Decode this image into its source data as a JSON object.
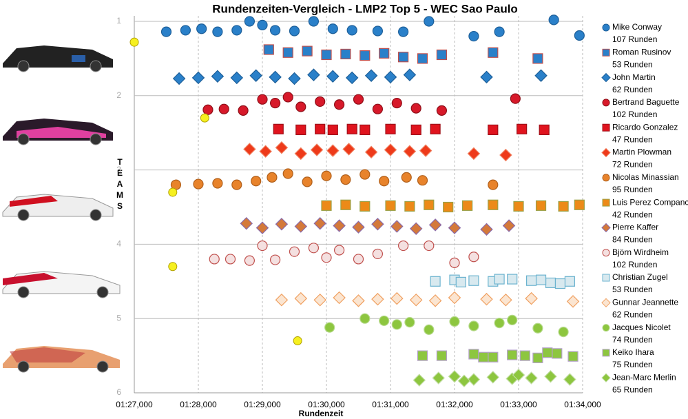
{
  "chart_data": {
    "type": "scatter",
    "title": "Rundenzeiten-Vergleich - LMP2 Top 5 - WEC Sao Paulo",
    "xlabel": "Rundenzeit",
    "ylabel": "TEAMS",
    "xlim": [
      87,
      94
    ],
    "xticks": [
      {
        "value": 87,
        "label": "01:27,000"
      },
      {
        "value": 88,
        "label": "01:28,000"
      },
      {
        "value": 89,
        "label": "01:29,000"
      },
      {
        "value": 90,
        "label": "01:30,000"
      },
      {
        "value": 91,
        "label": "01:31,000"
      },
      {
        "value": 92,
        "label": "01:32,000"
      },
      {
        "value": 93,
        "label": "01:33,000"
      },
      {
        "value": 94,
        "label": "01:34,000"
      }
    ],
    "ylim": [
      1,
      6
    ],
    "yticks": [
      1,
      2,
      3,
      4,
      5,
      6
    ],
    "y_inverted": true,
    "grid": true,
    "series": [
      {
        "name": "Mike Conway",
        "laps": "107 Runden",
        "marker": "circle",
        "color": "#2a80c9",
        "edge": "#1d5f99",
        "x": [
          87.5,
          87.8,
          88.05,
          88.3,
          88.6,
          88.8,
          89.0,
          89.2,
          89.5,
          89.8,
          90.1,
          90.4,
          90.8,
          91.2,
          91.6,
          92.3,
          92.7,
          93.55,
          93.95
        ],
        "y": [
          1.14,
          1.12,
          1.1,
          1.14,
          1.12,
          1.0,
          1.05,
          1.12,
          1.13,
          1.0,
          1.1,
          1.12,
          1.13,
          1.14,
          1.0,
          1.2,
          1.14,
          0.98,
          1.19
        ]
      },
      {
        "name": "Roman Rusinov",
        "laps": "53 Runden",
        "marker": "square",
        "color": "#2a80c9",
        "edge": "#c0504d",
        "x": [
          89.1,
          89.4,
          89.7,
          90.0,
          90.3,
          90.6,
          90.9,
          91.2,
          91.5,
          91.8,
          92.6,
          93.3
        ],
        "y": [
          1.38,
          1.42,
          1.4,
          1.45,
          1.44,
          1.46,
          1.43,
          1.48,
          1.5,
          1.45,
          1.42,
          1.5
        ]
      },
      {
        "name": "John Martin",
        "laps": "62 Runden",
        "marker": "diamond",
        "color": "#2a80c9",
        "edge": "#1d5f99",
        "x": [
          87.7,
          88.0,
          88.3,
          88.6,
          88.9,
          89.2,
          89.5,
          89.8,
          90.1,
          90.4,
          90.7,
          91.0,
          91.3,
          92.5,
          93.35
        ],
        "y": [
          1.77,
          1.76,
          1.74,
          1.76,
          1.73,
          1.75,
          1.77,
          1.72,
          1.74,
          1.76,
          1.73,
          1.75,
          1.72,
          1.75,
          1.73
        ]
      },
      {
        "name": "Bertrand Baguette",
        "laps": "102 Runden",
        "marker": "circle",
        "color": "#d7192a",
        "edge": "#8e1019",
        "x": [
          88.15,
          88.4,
          88.7,
          89.0,
          89.2,
          89.4,
          89.6,
          89.9,
          90.2,
          90.5,
          90.8,
          91.1,
          91.4,
          91.8,
          92.95
        ],
        "y": [
          2.19,
          2.18,
          2.2,
          2.05,
          2.1,
          2.02,
          2.15,
          2.08,
          2.12,
          2.05,
          2.18,
          2.1,
          2.17,
          2.2,
          2.04
        ]
      },
      {
        "name": "Ricardo Gonzalez",
        "laps": "47 Runden",
        "marker": "square",
        "color": "#e0141e",
        "edge": "#a01018",
        "x": [
          89.25,
          89.6,
          89.9,
          90.1,
          90.4,
          90.6,
          91.0,
          91.4,
          91.7,
          92.6,
          93.05,
          93.4
        ],
        "y": [
          2.45,
          2.46,
          2.45,
          2.46,
          2.45,
          2.46,
          2.45,
          2.46,
          2.45,
          2.46,
          2.45,
          2.46
        ]
      },
      {
        "name": "Martin Plowman",
        "laps": "72 Runden",
        "marker": "diamond",
        "color": "#ee3a1a",
        "edge": "#f08060",
        "x": [
          88.8,
          89.05,
          89.3,
          89.6,
          89.85,
          90.1,
          90.35,
          90.7,
          91.0,
          91.3,
          91.55,
          92.3,
          92.8
        ],
        "y": [
          2.72,
          2.75,
          2.7,
          2.78,
          2.73,
          2.74,
          2.72,
          2.76,
          2.73,
          2.75,
          2.74,
          2.78,
          2.8
        ]
      },
      {
        "name": "Nicolas Minassian",
        "laps": "95 Runden",
        "marker": "circle",
        "color": "#e8832b",
        "edge": "#b0601c",
        "x": [
          87.65,
          88.0,
          88.3,
          88.6,
          88.9,
          89.15,
          89.4,
          89.7,
          90.0,
          90.3,
          90.6,
          90.9,
          91.25,
          91.5,
          92.6
        ],
        "y": [
          3.2,
          3.19,
          3.18,
          3.2,
          3.15,
          3.1,
          3.05,
          3.16,
          3.08,
          3.13,
          3.06,
          3.15,
          3.1,
          3.14,
          3.2
        ]
      },
      {
        "name": "Luis Perez Companc",
        "laps": "42 Runden",
        "marker": "square",
        "color": "#ec8a18",
        "edge": "#9aa046",
        "x": [
          90.0,
          90.3,
          90.6,
          91.0,
          91.3,
          91.6,
          91.9,
          92.2,
          92.6,
          93.0,
          93.35,
          93.7,
          93.95
        ],
        "y": [
          3.48,
          3.47,
          3.49,
          3.48,
          3.49,
          3.47,
          3.5,
          3.48,
          3.47,
          3.49,
          3.48,
          3.49,
          3.47
        ]
      },
      {
        "name": "Pierre Kaffer",
        "laps": "84 Runden",
        "marker": "diamond",
        "color": "#d4793a",
        "edge": "#8a6aa8",
        "x": [
          88.75,
          89.0,
          89.3,
          89.6,
          89.9,
          90.2,
          90.5,
          90.8,
          91.1,
          91.4,
          91.7,
          92.0,
          92.5,
          92.85
        ],
        "y": [
          3.72,
          3.78,
          3.73,
          3.76,
          3.72,
          3.75,
          3.77,
          3.73,
          3.76,
          3.79,
          3.74,
          3.78,
          3.8,
          3.75
        ]
      },
      {
        "name": "Björn Wirdheim",
        "laps": "102 Runden",
        "marker": "circle",
        "color": "#f4e0e0",
        "edge": "#c0504d",
        "x": [
          88.25,
          88.5,
          88.8,
          89.0,
          89.2,
          89.5,
          89.8,
          90.0,
          90.2,
          90.5,
          90.8,
          91.2,
          91.6,
          92.0,
          92.3
        ],
        "y": [
          4.2,
          4.2,
          4.22,
          4.02,
          4.21,
          4.1,
          4.05,
          4.18,
          4.08,
          4.2,
          4.13,
          4.02,
          4.02,
          4.25,
          4.17
        ]
      },
      {
        "name": "Christian Zugel",
        "laps": "53 Runden",
        "marker": "square",
        "color": "#d8e9ef",
        "edge": "#6bb3cf",
        "x": [
          91.7,
          92.0,
          92.3,
          92.6,
          92.9,
          93.2,
          93.5,
          93.8,
          92.1,
          92.7,
          93.35,
          93.65
        ],
        "y": [
          4.5,
          4.48,
          4.49,
          4.5,
          4.47,
          4.49,
          4.52,
          4.5,
          4.51,
          4.47,
          4.48,
          4.53
        ]
      },
      {
        "name": "Gunnar Jeannette",
        "laps": "62 Runden",
        "marker": "diamond",
        "color": "#fbe5d1",
        "edge": "#f0a060",
        "x": [
          89.3,
          89.6,
          89.9,
          90.2,
          90.5,
          90.8,
          91.1,
          91.4,
          91.7,
          92.0,
          92.5,
          92.8,
          93.2,
          93.85
        ],
        "y": [
          4.75,
          4.73,
          4.75,
          4.72,
          4.76,
          4.74,
          4.73,
          4.75,
          4.76,
          4.72,
          4.74,
          4.75,
          4.73,
          4.77
        ]
      },
      {
        "name": "Jacques Nicolet",
        "laps": "74 Runden",
        "marker": "circle",
        "color": "#8dc63f",
        "edge": "#b5d98a",
        "x": [
          90.05,
          90.6,
          90.9,
          91.1,
          91.3,
          91.6,
          92.0,
          92.3,
          92.7,
          92.9,
          93.3,
          93.7
        ],
        "y": [
          5.12,
          5.0,
          5.03,
          5.08,
          5.05,
          5.15,
          5.04,
          5.1,
          5.06,
          5.02,
          5.13,
          5.18
        ]
      },
      {
        "name": "Keiko Ihara",
        "laps": "75 Runden",
        "marker": "square",
        "color": "#8dc63f",
        "edge": "#b3a0c8",
        "x": [
          91.5,
          91.8,
          92.3,
          92.6,
          92.9,
          93.1,
          93.3,
          93.6,
          93.85,
          92.45,
          93.45
        ],
        "y": [
          5.5,
          5.5,
          5.48,
          5.52,
          5.49,
          5.5,
          5.53,
          5.47,
          5.51,
          5.52,
          5.46
        ]
      },
      {
        "name": "Jean-Marc Merlin",
        "laps": "65 Runden",
        "marker": "diamond",
        "color": "#8dc63f",
        "edge": "#c0dca0",
        "x": [
          91.45,
          91.75,
          92.0,
          92.3,
          92.6,
          92.9,
          93.2,
          93.5,
          93.8,
          92.15,
          93.0
        ],
        "y": [
          5.83,
          5.8,
          5.78,
          5.82,
          5.79,
          5.81,
          5.8,
          5.78,
          5.82,
          5.84,
          5.76
        ]
      }
    ],
    "highlights": {
      "marker": "circle",
      "color": "#f6f020",
      "edge": "#b0a000",
      "x": [
        87.0,
        88.1,
        87.6,
        87.6,
        89.55
      ],
      "y": [
        1.28,
        2.3,
        3.3,
        4.3,
        5.3
      ]
    }
  }
}
